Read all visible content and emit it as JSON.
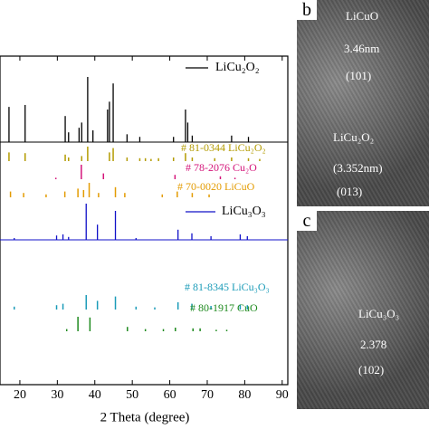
{
  "chart_data": {
    "type": "xrd",
    "x_label": "2 Theta (degree)",
    "xlim": [
      14.7,
      91.5
    ],
    "xticks": [
      20,
      30,
      40,
      50,
      60,
      70,
      80,
      90
    ],
    "series": [
      {
        "name": "LiCu₂O₂",
        "color": "#000000",
        "style": "pattern",
        "x": [
          17.1,
          21.4,
          32.1,
          33,
          35.8,
          36.5,
          38.1,
          39.5,
          43.4,
          43.9,
          44.9,
          48.6,
          52,
          61,
          64.2,
          64.8,
          66,
          76.5,
          81
        ],
        "values": [
          54,
          57,
          40,
          15,
          22,
          30,
          100,
          18,
          50,
          62,
          90,
          12,
          8,
          8,
          50,
          30,
          10,
          10,
          8
        ]
      },
      {
        "name": "# 81-0344 LiCu₂O₂",
        "color": "#b39b00",
        "style": "stick",
        "x": [
          17.1,
          21.4,
          32.1,
          33,
          36.5,
          38.1,
          43.9,
          44.9,
          48.6,
          52,
          53.5,
          55,
          57,
          61,
          64.2,
          66,
          72,
          76.5,
          81,
          84
        ],
        "values": [
          60,
          55,
          45,
          25,
          35,
          100,
          60,
          90,
          25,
          20,
          20,
          15,
          20,
          25,
          55,
          25,
          20,
          25,
          20,
          15
        ]
      },
      {
        "name": "# 78-2076 Cu₂O",
        "color": "#d4157a",
        "style": "stick",
        "x": [
          29.6,
          36.4,
          42.3,
          61.4,
          73.5,
          77.4
        ],
        "values": [
          10,
          100,
          40,
          30,
          20,
          10
        ]
      },
      {
        "name": "# 70-0020 LiCuO",
        "color": "#e39b00",
        "style": "stick",
        "x": [
          17.5,
          21,
          27,
          32,
          35.5,
          37,
          38.5,
          41,
          45.5,
          48,
          58,
          62,
          66,
          70.5
        ],
        "values": [
          40,
          30,
          20,
          40,
          60,
          50,
          100,
          30,
          70,
          30,
          20,
          40,
          30,
          20
        ]
      },
      {
        "name": "LiCu₃O₃",
        "color": "#1010c8",
        "style": "pattern",
        "x": [
          18.5,
          29.8,
          31.5,
          33,
          37.7,
          40.7,
          45.5,
          51,
          62.2,
          65.9,
          71,
          78.8,
          80.7
        ],
        "values": [
          5,
          12,
          15,
          8,
          100,
          42,
          80,
          5,
          28,
          18,
          10,
          15,
          10
        ]
      },
      {
        "name": "# 81-8345 LiCu₃O₃",
        "color": "#1a9bb8",
        "style": "stick",
        "x": [
          18.5,
          29.8,
          31.5,
          37.7,
          40.7,
          45.5,
          51,
          56,
          62.2,
          65.9,
          71,
          78.8,
          80.7
        ],
        "values": [
          20,
          30,
          40,
          100,
          60,
          90,
          20,
          15,
          50,
          40,
          25,
          35,
          30
        ]
      },
      {
        "name": "# 80-1917 CuO",
        "color": "#1e8a1e",
        "style": "stick",
        "x": [
          32.5,
          35.5,
          38.7,
          48.7,
          53.5,
          58.3,
          61.5,
          66.2,
          68.1,
          72.4,
          75.2
        ],
        "values": [
          15,
          100,
          95,
          30,
          15,
          15,
          25,
          20,
          20,
          10,
          10
        ]
      }
    ]
  },
  "panels": [
    {
      "label": "b",
      "texts": [
        "LiCuO",
        "3.46nm",
        "(101)",
        "LiCu₂O₂",
        "(3.352nm)",
        "(013)"
      ]
    },
    {
      "label": "c",
      "texts": [
        "LiCu₃O₃",
        "2.378",
        "(102)"
      ]
    }
  ]
}
